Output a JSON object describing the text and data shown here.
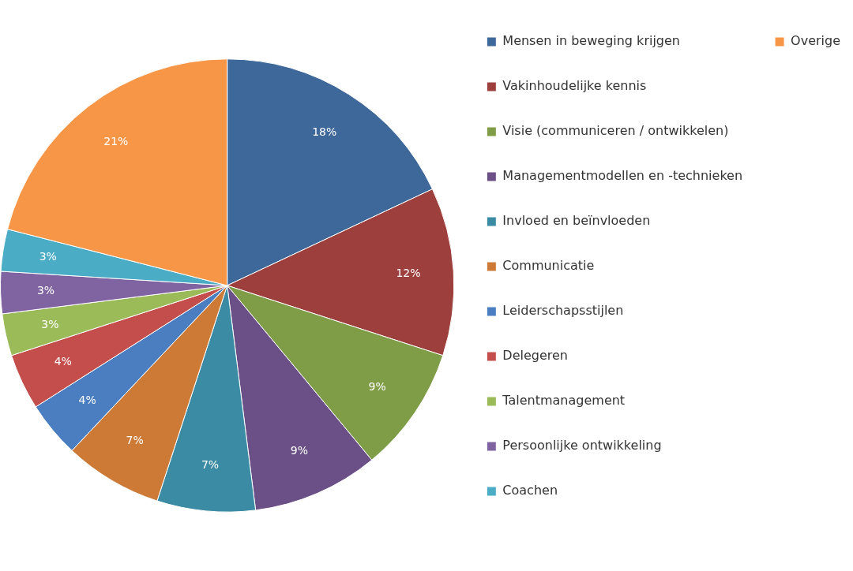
{
  "chart_data": {
    "type": "pie",
    "categories": [
      "Mensen in beweging krijgen",
      "Vakinhoudelijke kennis",
      "Visie (communiceren / ontwikkelen)",
      "Managementmodellen en -technieken",
      "Invloed en beïnvloeden",
      "Communicatie",
      "Leiderschapsstijlen",
      "Delegeren",
      "Talentmanagement",
      "Persoonlijke ontwikkeling",
      "Coachen",
      "Overige"
    ],
    "values": [
      18,
      12,
      9,
      9,
      7,
      7,
      4,
      4,
      3,
      3,
      3,
      21
    ],
    "value_labels": [
      "18%",
      "12%",
      "9%",
      "9%",
      "7%",
      "7%",
      "4%",
      "4%",
      "3%",
      "3%",
      "3%",
      "21%"
    ],
    "colors": [
      "#3e6899",
      "#9c3f3d",
      "#7f9c47",
      "#6a5086",
      "#3a8ba3",
      "#cc7a35",
      "#4a7ec0",
      "#c44e4c",
      "#9bbb59",
      "#8064a2",
      "#4bacc6",
      "#f79646"
    ],
    "legend": "right"
  }
}
